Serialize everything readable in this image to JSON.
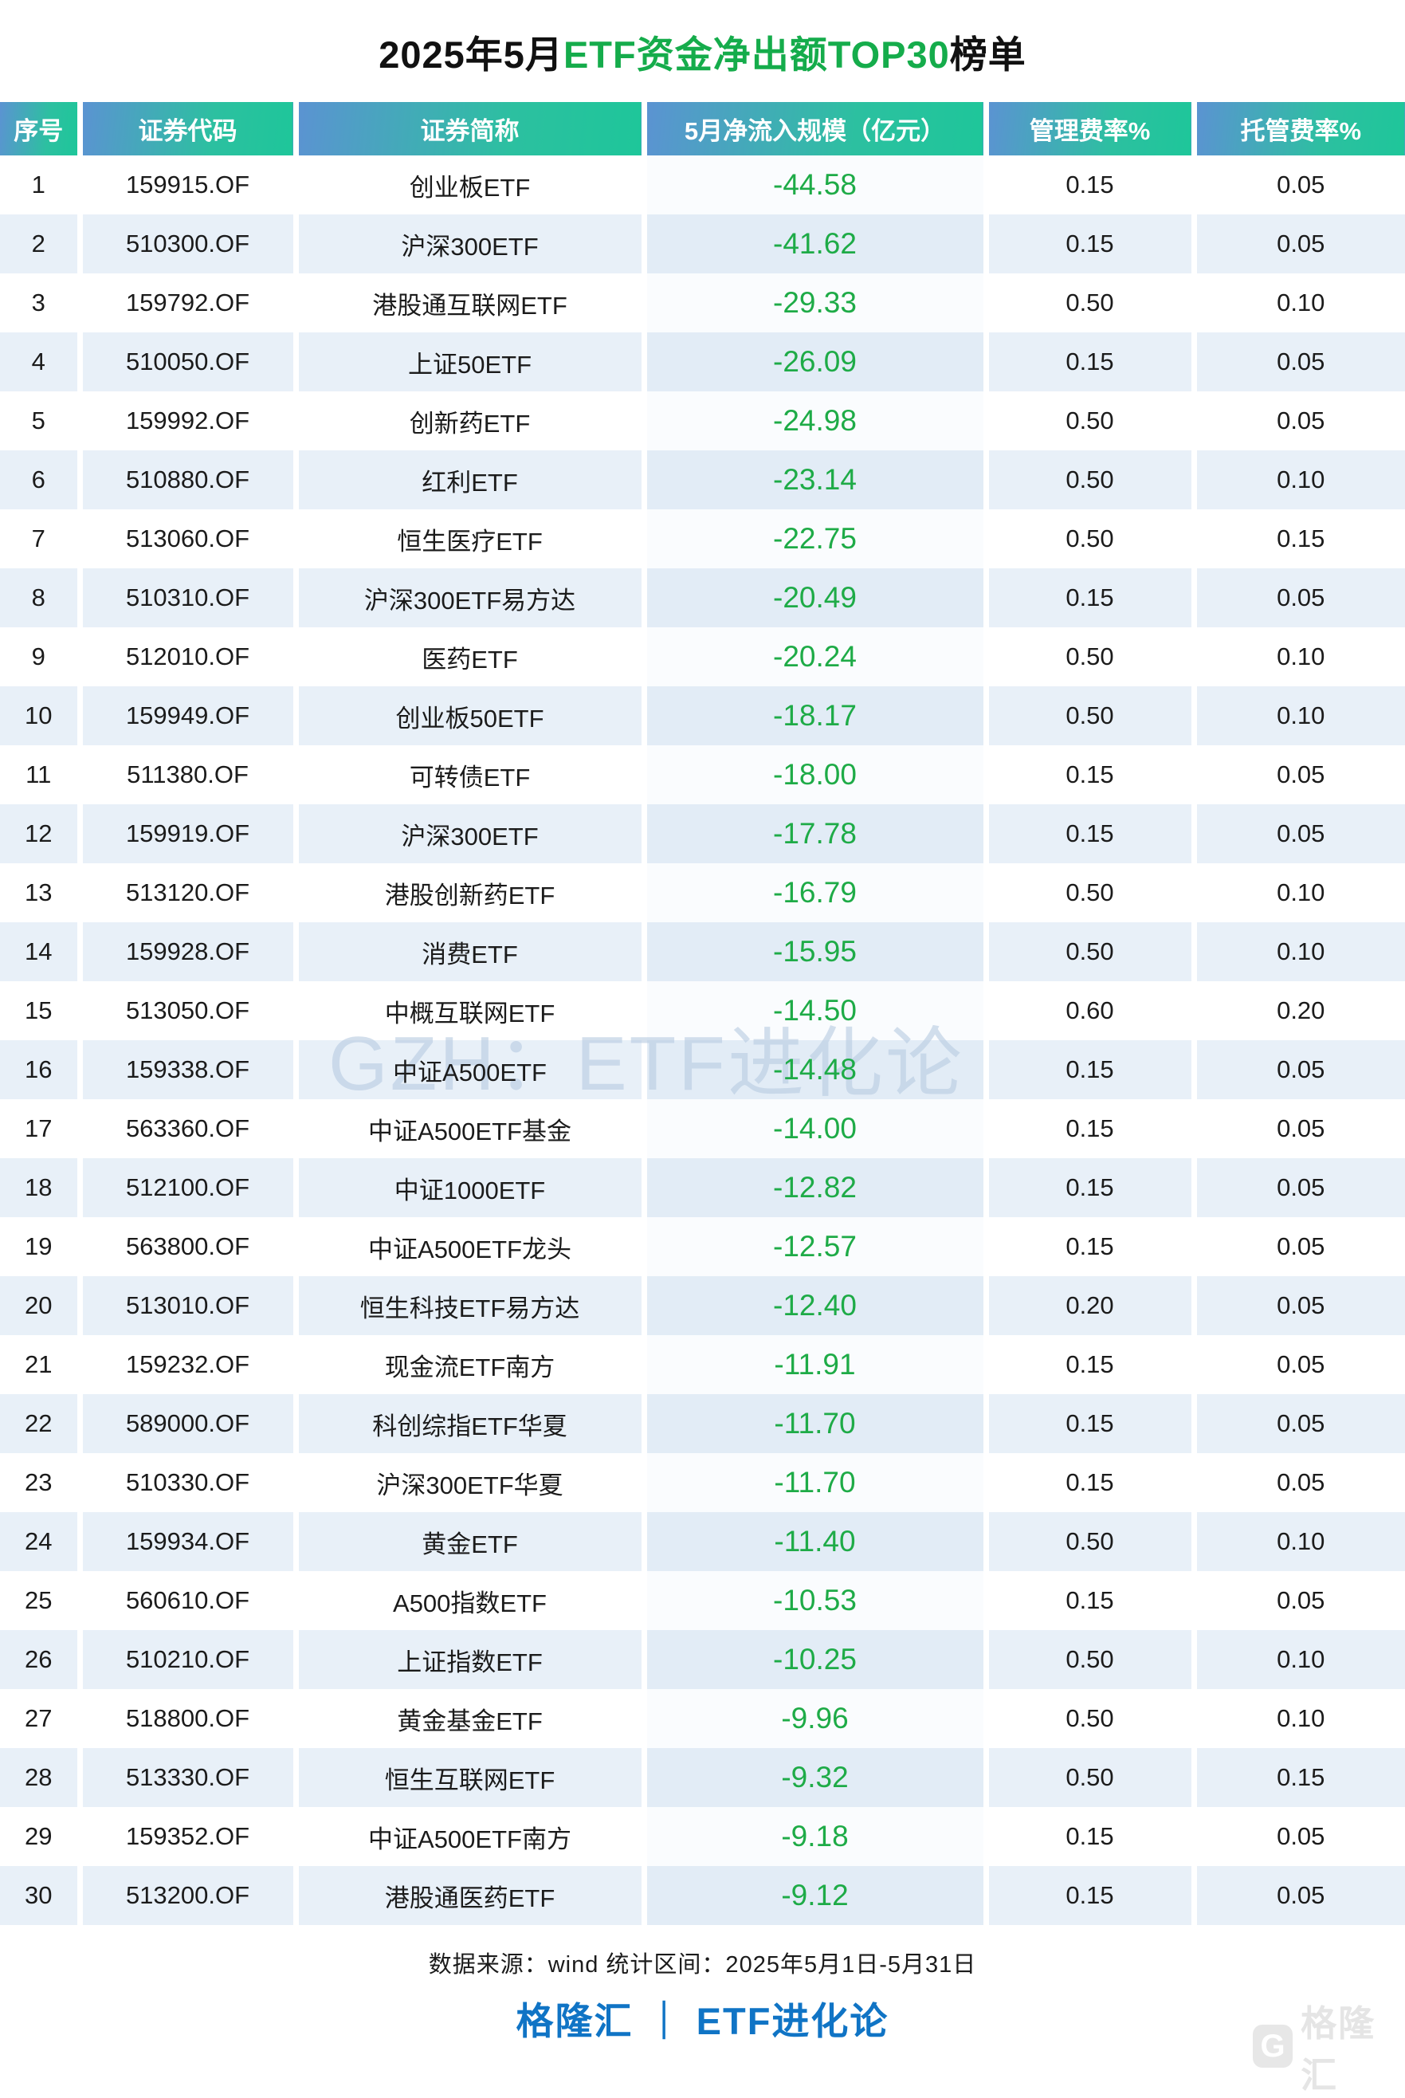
{
  "title": {
    "prefix": "2025年5月",
    "highlight": "ETF资金净出额TOP30",
    "suffix": "榜单"
  },
  "colors": {
    "title_highlight_green": "#15AC4B",
    "value_green": "#1EAB47",
    "header_gradient_blue": "#5B93D2",
    "header_gradient_green": "#1EC69A",
    "even_row_bg": "#E8F0F8",
    "brand_blue": "#1074C5"
  },
  "watermark": "GZH：ETF进化论",
  "chart_data": {
    "type": "table",
    "title": "2025年5月ETF资金净出额TOP30榜单",
    "columns": [
      "序号",
      "证券代码",
      "证券简称",
      "5月净流入规模（亿元）",
      "管理费率%",
      "托管费率%"
    ],
    "rows": [
      [
        "1",
        "159915.OF",
        "创业板ETF",
        "-44.58",
        "0.15",
        "0.05"
      ],
      [
        "2",
        "510300.OF",
        "沪深300ETF",
        "-41.62",
        "0.15",
        "0.05"
      ],
      [
        "3",
        "159792.OF",
        "港股通互联网ETF",
        "-29.33",
        "0.50",
        "0.10"
      ],
      [
        "4",
        "510050.OF",
        "上证50ETF",
        "-26.09",
        "0.15",
        "0.05"
      ],
      [
        "5",
        "159992.OF",
        "创新药ETF",
        "-24.98",
        "0.50",
        "0.05"
      ],
      [
        "6",
        "510880.OF",
        "红利ETF",
        "-23.14",
        "0.50",
        "0.10"
      ],
      [
        "7",
        "513060.OF",
        "恒生医疗ETF",
        "-22.75",
        "0.50",
        "0.15"
      ],
      [
        "8",
        "510310.OF",
        "沪深300ETF易方达",
        "-20.49",
        "0.15",
        "0.05"
      ],
      [
        "9",
        "512010.OF",
        "医药ETF",
        "-20.24",
        "0.50",
        "0.10"
      ],
      [
        "10",
        "159949.OF",
        "创业板50ETF",
        "-18.17",
        "0.50",
        "0.10"
      ],
      [
        "11",
        "511380.OF",
        "可转债ETF",
        "-18.00",
        "0.15",
        "0.05"
      ],
      [
        "12",
        "159919.OF",
        "沪深300ETF",
        "-17.78",
        "0.15",
        "0.05"
      ],
      [
        "13",
        "513120.OF",
        "港股创新药ETF",
        "-16.79",
        "0.50",
        "0.10"
      ],
      [
        "14",
        "159928.OF",
        "消费ETF",
        "-15.95",
        "0.50",
        "0.10"
      ],
      [
        "15",
        "513050.OF",
        "中概互联网ETF",
        "-14.50",
        "0.60",
        "0.20"
      ],
      [
        "16",
        "159338.OF",
        "中证A500ETF",
        "-14.48",
        "0.15",
        "0.05"
      ],
      [
        "17",
        "563360.OF",
        "中证A500ETF基金",
        "-14.00",
        "0.15",
        "0.05"
      ],
      [
        "18",
        "512100.OF",
        "中证1000ETF",
        "-12.82",
        "0.15",
        "0.05"
      ],
      [
        "19",
        "563800.OF",
        "中证A500ETF龙头",
        "-12.57",
        "0.15",
        "0.05"
      ],
      [
        "20",
        "513010.OF",
        "恒生科技ETF易方达",
        "-12.40",
        "0.20",
        "0.05"
      ],
      [
        "21",
        "159232.OF",
        "现金流ETF南方",
        "-11.91",
        "0.15",
        "0.05"
      ],
      [
        "22",
        "589000.OF",
        "科创综指ETF华夏",
        "-11.70",
        "0.15",
        "0.05"
      ],
      [
        "23",
        "510330.OF",
        "沪深300ETF华夏",
        "-11.70",
        "0.15",
        "0.05"
      ],
      [
        "24",
        "159934.OF",
        "黄金ETF",
        "-11.40",
        "0.50",
        "0.10"
      ],
      [
        "25",
        "560610.OF",
        "A500指数ETF",
        "-10.53",
        "0.15",
        "0.05"
      ],
      [
        "26",
        "510210.OF",
        "上证指数ETF",
        "-10.25",
        "0.50",
        "0.10"
      ],
      [
        "27",
        "518800.OF",
        "黄金基金ETF",
        "-9.96",
        "0.50",
        "0.10"
      ],
      [
        "28",
        "513330.OF",
        "恒生互联网ETF",
        "-9.32",
        "0.50",
        "0.15"
      ],
      [
        "29",
        "159352.OF",
        "中证A500ETF南方",
        "-9.18",
        "0.15",
        "0.05"
      ],
      [
        "30",
        "513200.OF",
        "港股通医药ETF",
        "-9.12",
        "0.15",
        "0.05"
      ]
    ]
  },
  "footer": {
    "source_line": "数据来源：wind  统计区间：2025年5月1日-5月31日",
    "brand_line": "格隆汇 ｜ ETF进化论",
    "logo_letter": "G",
    "logo_text": "格隆汇"
  }
}
